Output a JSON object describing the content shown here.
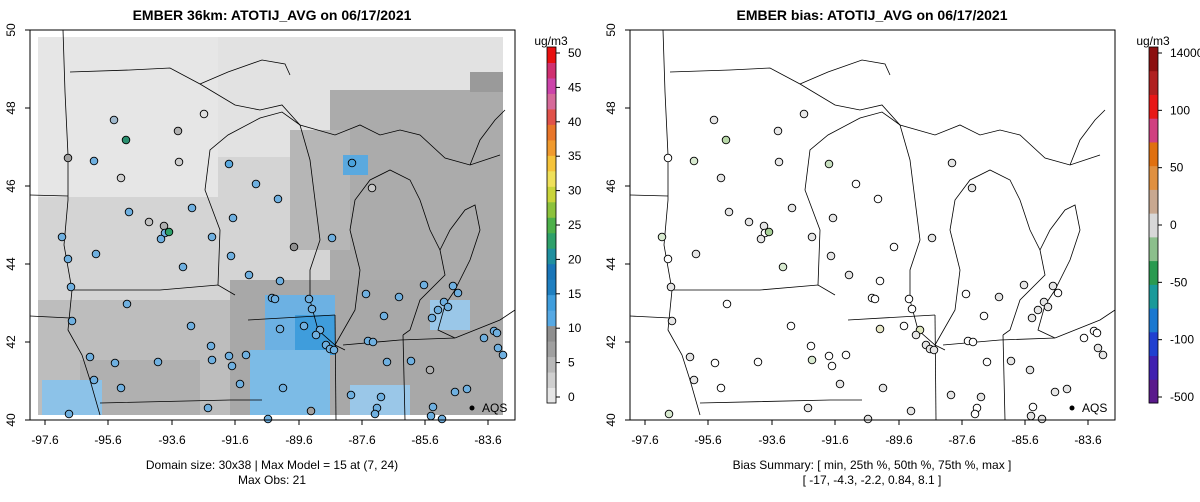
{
  "left_panel": {
    "title": "EMBER 36km: ATOTIJ_AVG on 06/17/2021",
    "y_ticks": [
      "40",
      "42",
      "44",
      "46",
      "48",
      "50"
    ],
    "x_ticks": [
      "-97.6",
      "-95.6",
      "-93.6",
      "-91.6",
      "-89.6",
      "-87.6",
      "-85.6",
      "-83.6"
    ],
    "legend_label": "AQS",
    "footer_line1": "Domain size: 30x38 | Max Model = 15 at (7, 24)",
    "footer_line2": "Max Obs: 21",
    "colorbar": {
      "unit": "ug/m3",
      "ticks": [
        "0",
        "5",
        "10",
        "15",
        "20",
        "25",
        "30",
        "35",
        "40",
        "45",
        "50"
      ],
      "colors": [
        "#e6e6e6",
        "#cfcfcf",
        "#b8b8b8",
        "#a0a0a0",
        "#8f8f8f",
        "#56a9e4",
        "#3f9ddc",
        "#1f7fc0",
        "#1976b8",
        "#1f8f9f",
        "#2ea06a",
        "#4db04a",
        "#8cc23c",
        "#c9d43a",
        "#efe05a",
        "#f5c33a",
        "#f09a2e",
        "#e8762a",
        "#e0524a",
        "#d66a9a",
        "#cc44aa",
        "#d03070",
        "#e81010"
      ]
    }
  },
  "right_panel": {
    "title": "EMBER bias: ATOTIJ_AVG on 06/17/2021",
    "y_ticks": [
      "40",
      "42",
      "44",
      "46",
      "48",
      "50"
    ],
    "x_ticks": [
      "-97.6",
      "-95.6",
      "-93.6",
      "-91.6",
      "-89.6",
      "-87.6",
      "-85.6",
      "-83.6"
    ],
    "legend_label": "AQS",
    "footer_line1": "Bias Summary: [ min, 25th %, 50th %, 75th %, max ]",
    "footer_line2": "[ -17,   -4.3,   -2.2,   0.84,   8.1 ]",
    "colorbar": {
      "unit": "ug/m3",
      "ticks": [
        "-500",
        "-100",
        "-50",
        "0",
        "50",
        "100",
        "14000"
      ],
      "colors": [
        "#5a1a8c",
        "#4020b0",
        "#2040d0",
        "#1a78d0",
        "#1a9a9a",
        "#2a9a50",
        "#8cbf8c",
        "#d8d8d8",
        "#c8a890",
        "#e09040",
        "#e07010",
        "#d04080",
        "#e81818",
        "#b02020",
        "#8c1010"
      ]
    }
  }
}
